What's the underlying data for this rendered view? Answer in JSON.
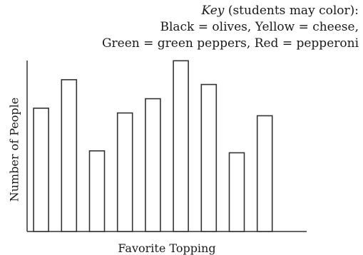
{
  "key": {
    "title_word": "Key",
    "title_rest": " (students may color):",
    "line2": "Black = olives, Yellow = cheese,",
    "line3": "Green = green peppers, Red = pepperoni"
  },
  "chart_data": {
    "type": "bar",
    "title": "",
    "xlabel": "Favorite Topping",
    "ylabel": "Number of People",
    "categories": [
      "",
      "",
      "",
      "",
      "",
      "",
      "",
      "",
      "",
      ""
    ],
    "values": [
      13,
      16,
      8.5,
      12.5,
      14,
      18,
      15.5,
      8.3,
      12.2,
      0
    ],
    "ylim": [
      0,
      19
    ],
    "grid": false,
    "bar_fill": "#ffffff",
    "bar_stroke": "#333333",
    "axis_color": "#333333"
  }
}
